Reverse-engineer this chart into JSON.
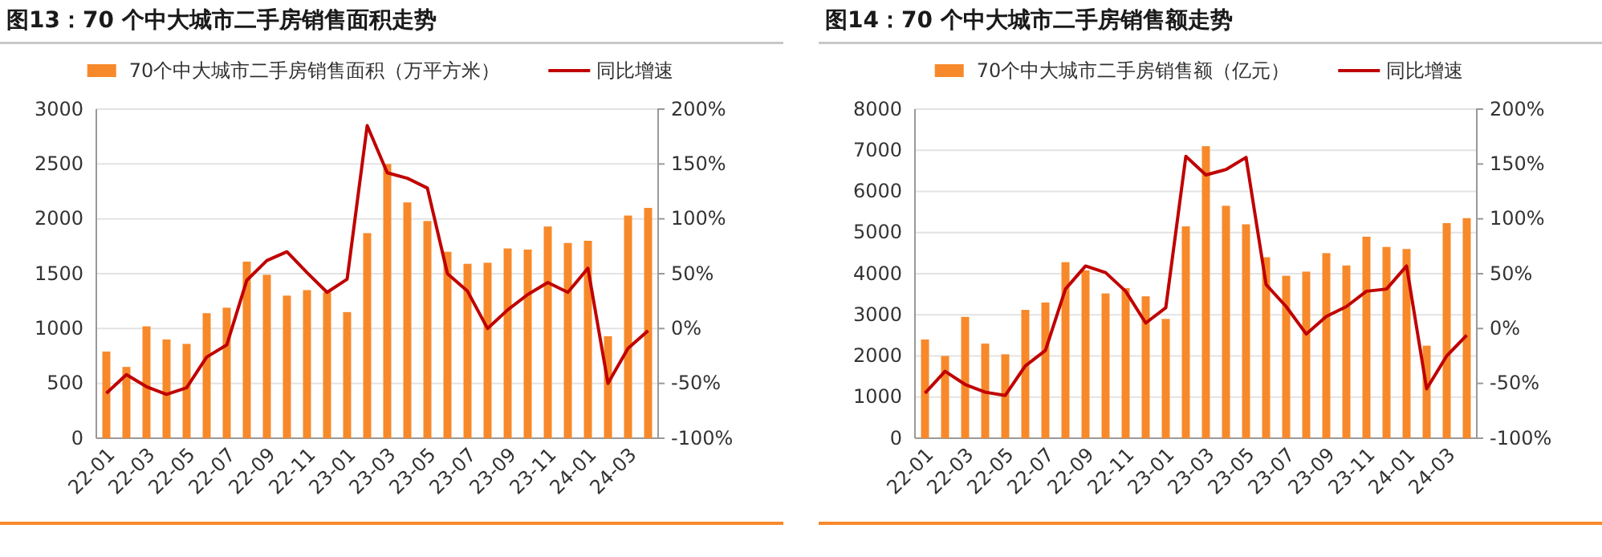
{
  "chart_data": [
    {
      "type": "bar",
      "title": "图13：70 个中大城市二手房销售面积走势",
      "categories": [
        "22-01",
        null,
        "22-03",
        null,
        "22-05",
        null,
        "22-07",
        null,
        "22-09",
        null,
        "22-11",
        null,
        "23-01",
        null,
        "23-03",
        null,
        "23-05",
        null,
        "23-07",
        null,
        "23-09",
        null,
        "23-11",
        null,
        "24-01",
        null,
        "24-03",
        null
      ],
      "series": [
        {
          "name": "70个中大城市二手房销售面积（万平方米）",
          "color": "#f7892b",
          "values": [
            790,
            650,
            1020,
            900,
            860,
            1140,
            1190,
            1610,
            1490,
            1300,
            1350,
            1330,
            1150,
            1870,
            2500,
            2150,
            1980,
            1700,
            1590,
            1600,
            1730,
            1720,
            1930,
            1780,
            1800,
            930,
            2030,
            2100
          ]
        },
        {
          "name": "同比增速",
          "type": "line",
          "axis": "y2",
          "color": "#c00000",
          "values": [
            -59,
            -42,
            -53,
            -60,
            -54,
            -26,
            -15,
            44,
            62,
            70,
            51,
            33,
            45,
            185,
            142,
            137,
            128,
            50,
            34,
            0,
            17,
            31,
            42,
            33,
            55,
            -50,
            -18,
            -2
          ]
        }
      ],
      "ylim": [
        0,
        3000
      ],
      "yticks": [
        0,
        500,
        1000,
        1500,
        2000,
        2500,
        3000
      ],
      "y2lim": [
        -100,
        200
      ],
      "y2ticks": [
        {
          "value": -100,
          "label": "-100%"
        },
        {
          "value": -50,
          "label": "-50%"
        },
        {
          "value": 0,
          "label": "0%"
        },
        {
          "value": 50,
          "label": "50%"
        },
        {
          "value": 100,
          "label": "100%"
        },
        {
          "value": 150,
          "label": "150%"
        },
        {
          "value": 200,
          "label": "200%"
        }
      ],
      "grid": "y",
      "legend": "top"
    },
    {
      "type": "bar",
      "title": "图14：70 个中大城市二手房销售额走势",
      "categories": [
        "22-01",
        null,
        "22-03",
        null,
        "22-05",
        null,
        "22-07",
        null,
        "22-09",
        null,
        "22-11",
        null,
        "23-01",
        null,
        "23-03",
        null,
        "23-05",
        null,
        "23-07",
        null,
        "23-09",
        null,
        "23-11",
        null,
        "24-01",
        null,
        "24-03",
        null
      ],
      "series": [
        {
          "name": "70个中大城市二手房销售额（亿元）",
          "color": "#f7892b",
          "values": [
            2400,
            2000,
            2950,
            2300,
            2040,
            3120,
            3300,
            4280,
            4080,
            3520,
            3650,
            3450,
            2900,
            5150,
            7100,
            5650,
            5200,
            4400,
            3950,
            4050,
            4500,
            4200,
            4900,
            4650,
            4600,
            2250,
            5230,
            5350
          ]
        },
        {
          "name": "同比增速",
          "type": "line",
          "axis": "y2",
          "color": "#c00000",
          "values": [
            -59,
            -39,
            -51,
            -58,
            -61,
            -34,
            -20,
            36,
            57,
            51,
            34,
            5,
            19,
            157,
            140,
            145,
            156,
            40,
            20,
            -5,
            11,
            20,
            34,
            36,
            57,
            -55,
            -25,
            -6
          ]
        }
      ],
      "ylim": [
        0,
        8000
      ],
      "yticks": [
        0,
        1000,
        2000,
        3000,
        4000,
        5000,
        6000,
        7000,
        8000
      ],
      "y2lim": [
        -100,
        200
      ],
      "y2ticks": [
        {
          "value": -100,
          "label": "-100%"
        },
        {
          "value": -50,
          "label": "-50%"
        },
        {
          "value": 0,
          "label": "0%"
        },
        {
          "value": 50,
          "label": "50%"
        },
        {
          "value": 100,
          "label": "100%"
        },
        {
          "value": 150,
          "label": "150%"
        },
        {
          "value": 200,
          "label": "200%"
        }
      ],
      "grid": "y",
      "legend": "top"
    }
  ]
}
